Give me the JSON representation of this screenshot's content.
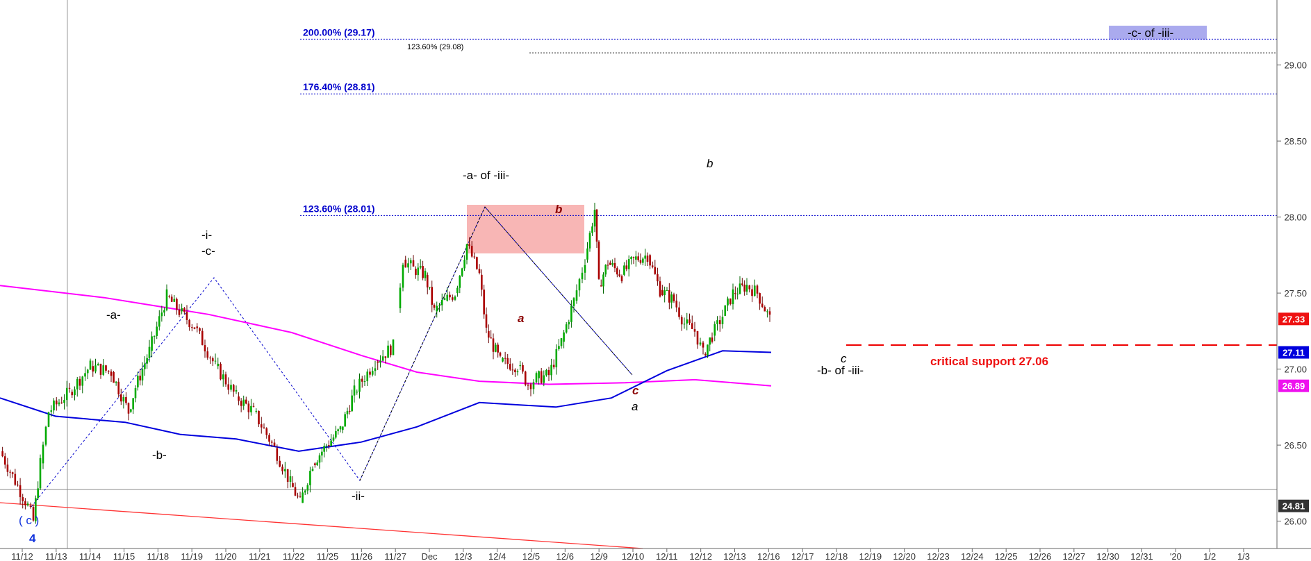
{
  "chart_data": {
    "type": "candlestick",
    "y_axis": {
      "ylim": [
        25.82,
        29.35
      ],
      "ticks": [
        "26.00",
        "26.50",
        "27.00",
        "27.50",
        "28.00",
        "28.50",
        "29.00"
      ]
    },
    "x_axis": {
      "ticks": [
        "11/12",
        "11/13",
        "11/14",
        "11/15",
        "11/18",
        "11/19",
        "11/20",
        "11/21",
        "11/22",
        "11/25",
        "11/26",
        "11/27",
        "Dec",
        "12/3",
        "12/4",
        "12/5",
        "12/6",
        "12/9",
        "12/10",
        "12/11",
        "12/12",
        "12/13",
        "12/16",
        "12/17",
        "12/18",
        "12/19",
        "12/20",
        "12/23",
        "12/24",
        "12/25",
        "12/26",
        "12/27",
        "12/30",
        "12/31",
        "'20",
        "1/2",
        "1/3"
      ]
    },
    "price_path": [
      [
        0,
        26.46
      ],
      [
        40,
        26.1
      ],
      [
        48,
        26.0
      ],
      [
        58,
        26.38
      ],
      [
        70,
        26.72
      ],
      [
        100,
        26.85
      ],
      [
        130,
        27.02
      ],
      [
        160,
        26.98
      ],
      [
        185,
        26.72
      ],
      [
        195,
        26.88
      ],
      [
        215,
        27.12
      ],
      [
        240,
        27.48
      ],
      [
        258,
        27.38
      ],
      [
        280,
        27.28
      ],
      [
        310,
        27.02
      ],
      [
        340,
        26.82
      ],
      [
        365,
        26.72
      ],
      [
        395,
        26.48
      ],
      [
        418,
        26.25
      ],
      [
        432,
        26.12
      ],
      [
        450,
        26.38
      ],
      [
        470,
        26.5
      ],
      [
        490,
        26.6
      ],
      [
        510,
        26.85
      ],
      [
        540,
        27.05
      ],
      [
        566,
        27.15
      ]
    ],
    "price_path_b": [
      [
        572,
        27.4
      ],
      [
        580,
        27.72
      ],
      [
        595,
        27.66
      ],
      [
        612,
        27.62
      ],
      [
        625,
        27.38
      ],
      [
        640,
        27.45
      ],
      [
        655,
        27.5
      ],
      [
        672,
        27.82
      ],
      [
        690,
        27.62
      ],
      [
        700,
        27.25
      ],
      [
        720,
        27.05
      ],
      [
        745,
        27.02
      ],
      [
        760,
        26.9
      ],
      [
        772,
        26.94
      ],
      [
        790,
        26.96
      ],
      [
        808,
        27.18
      ],
      [
        826,
        27.45
      ],
      [
        842,
        27.72
      ],
      [
        856,
        28.05
      ],
      [
        862,
        27.55
      ],
      [
        875,
        27.7
      ],
      [
        895,
        27.62
      ],
      [
        912,
        27.72
      ],
      [
        932,
        27.75
      ],
      [
        950,
        27.52
      ],
      [
        970,
        27.45
      ],
      [
        985,
        27.3
      ],
      [
        1000,
        27.25
      ],
      [
        1012,
        27.1
      ],
      [
        1025,
        27.22
      ],
      [
        1040,
        27.35
      ],
      [
        1055,
        27.5
      ],
      [
        1075,
        27.55
      ],
      [
        1090,
        27.5
      ],
      [
        1108,
        27.33
      ]
    ],
    "moving_averages": [
      {
        "color": "#ff00ff",
        "last_value": 26.89,
        "points": [
          [
            0,
            27.55
          ],
          [
            150,
            27.47
          ],
          [
            300,
            27.36
          ],
          [
            420,
            27.24
          ],
          [
            520,
            27.09
          ],
          [
            600,
            26.98
          ],
          [
            690,
            26.92
          ],
          [
            790,
            26.9
          ],
          [
            900,
            26.91
          ],
          [
            1000,
            26.93
          ],
          [
            1110,
            26.89
          ]
        ]
      },
      {
        "color": "#0000dd",
        "last_value": 27.11,
        "points": [
          [
            0,
            26.81
          ],
          [
            80,
            26.69
          ],
          [
            180,
            26.65
          ],
          [
            260,
            26.57
          ],
          [
            340,
            26.54
          ],
          [
            430,
            26.46
          ],
          [
            520,
            26.52
          ],
          [
            600,
            26.62
          ],
          [
            690,
            26.78
          ],
          [
            800,
            26.75
          ],
          [
            880,
            26.81
          ],
          [
            960,
            26.99
          ],
          [
            1040,
            27.12
          ],
          [
            1110,
            27.11
          ]
        ]
      }
    ],
    "fib_levels": [
      {
        "label": "200.00% (29.17)",
        "value": 29.17,
        "x_start": 432,
        "color": "#0000cc"
      },
      {
        "label": "123.60% (29.08)",
        "value": 29.08,
        "x_start": 762,
        "color": "#000000"
      },
      {
        "label": "176.40% (28.81)",
        "value": 28.81,
        "x_start": 432,
        "color": "#0000cc"
      },
      {
        "label": "123.60% (28.01)",
        "value": 28.01,
        "x_start": 432,
        "color": "#0000cc"
      }
    ],
    "price_tags": [
      {
        "value": "27.33",
        "y": 27.33,
        "color": "#ee1111"
      },
      {
        "value": "27.11",
        "y": 27.11,
        "color": "#0000dd"
      },
      {
        "value": "26.89",
        "y": 26.89,
        "color": "#ee11ee"
      },
      {
        "value": "24.81",
        "y": 26.1,
        "color": "#333333"
      }
    ],
    "critical_support": {
      "label": "critical support 27.06",
      "value": 27.06,
      "color": "#ee0000"
    },
    "annotations": {
      "c4_top": "( c )",
      "c4_bottom": "4",
      "a1": "-a-",
      "b1": "-b-",
      "i1": "-i-",
      "c1": "-c-",
      "ii": "-ii-",
      "a_of_iii": "-a- of -iii-",
      "small_a": "a",
      "small_b": "b",
      "small_c": "c",
      "a2": "a",
      "b2": "b",
      "c2": "c",
      "b_of_iii": "-b- of -iii-",
      "c_of_iii": "-c- of -iii-"
    }
  }
}
